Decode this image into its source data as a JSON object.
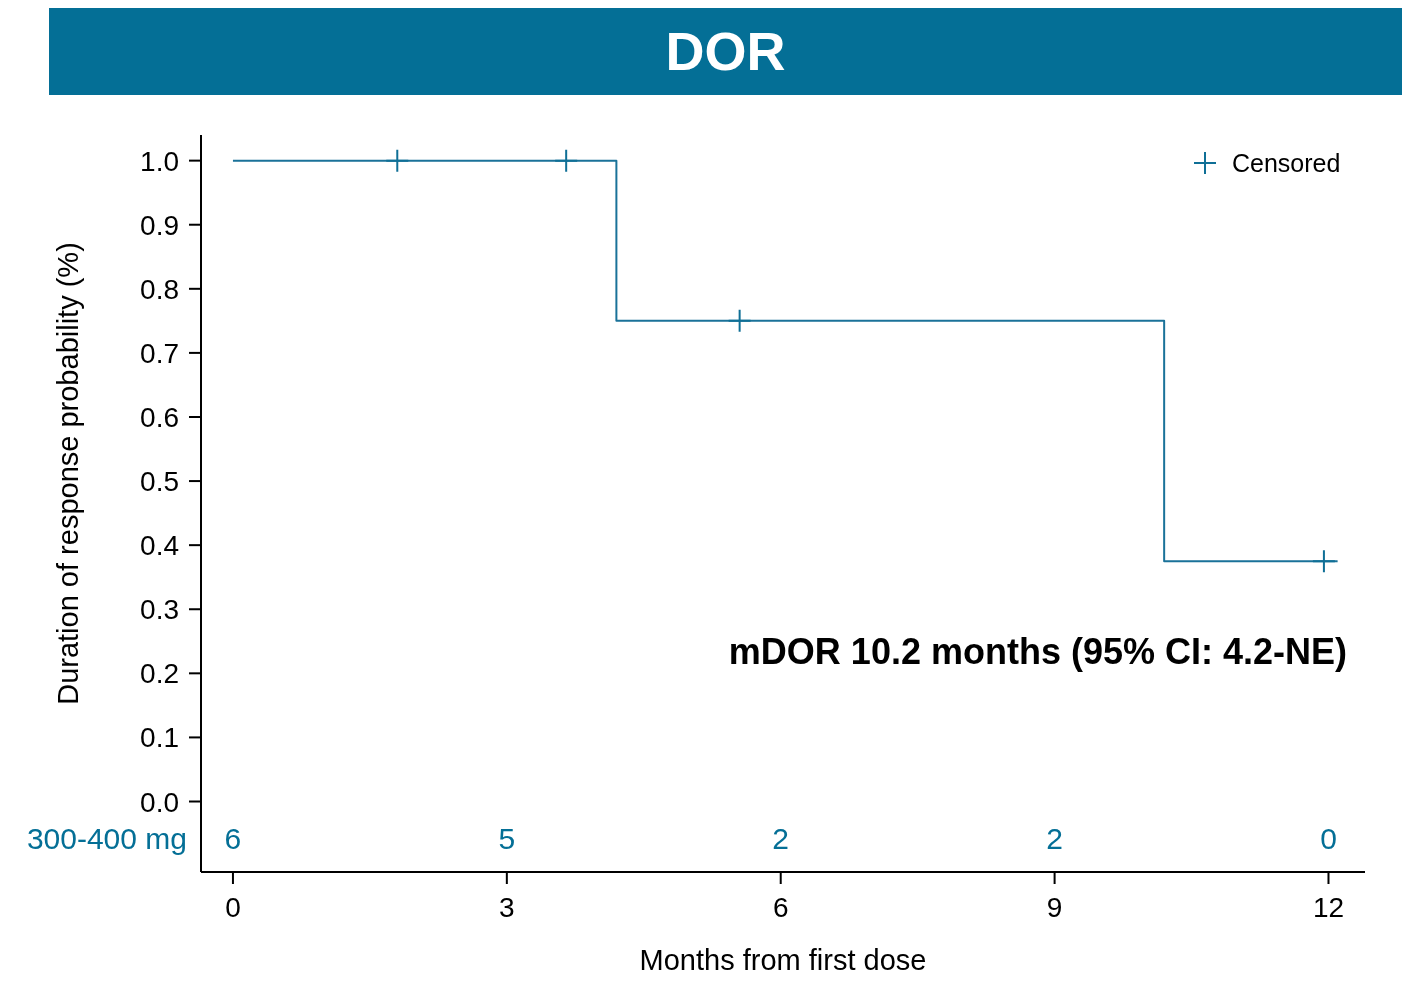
{
  "chart_data": {
    "type": "step",
    "title": "DOR",
    "xlabel": "Months from first dose",
    "ylabel": "Duration of response probability (%)",
    "xlim": [
      -0.35,
      12.4
    ],
    "xticks": [
      0,
      3,
      6,
      9,
      12
    ],
    "ylim": [
      -0.11,
      1.04
    ],
    "yticks": [
      {
        "value": 0,
        "label": "0.0"
      },
      {
        "value": 0.1,
        "label": "0.1"
      },
      {
        "value": 0.2,
        "label": "0.2"
      },
      {
        "value": 0.3,
        "label": "0.3"
      },
      {
        "value": 0.4,
        "label": "0.4"
      },
      {
        "value": 0.5,
        "label": "0.5"
      },
      {
        "value": 0.6,
        "label": "0.6"
      },
      {
        "value": 0.7,
        "label": "0.7"
      },
      {
        "value": 0.8,
        "label": "0.8"
      },
      {
        "value": 0.9,
        "label": "0.9"
      },
      {
        "value": 1,
        "label": "1.0"
      }
    ],
    "series": [
      {
        "color": "#1a7299",
        "x": [
          0,
          4.2,
          10.2,
          12.1
        ],
        "values": [
          1,
          0.75,
          0.375,
          0.375
        ]
      },
      {
        "type": "scatter",
        "name": "Censored",
        "color": "#0f6f96",
        "marker": "cross",
        "x": [
          1.8,
          3.65,
          5.55,
          11.95
        ],
        "values": [
          1,
          1,
          0.75,
          0.375
        ]
      }
    ],
    "legend": "top right",
    "annotations": [
      "mDOR 10.2 months (95% CI: 4.2-NE)",
      "300-400 mg",
      "6",
      "5",
      "2",
      "2",
      "0"
    ]
  }
}
